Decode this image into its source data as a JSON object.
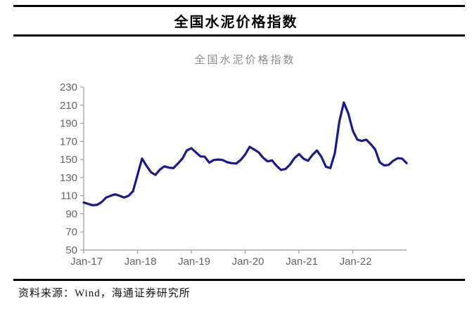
{
  "header": {
    "title": "全国水泥价格指数"
  },
  "source": {
    "label": "资料来源：Wind，海通证券研究所"
  },
  "chart_data": {
    "type": "line",
    "title": "全国水泥价格指数",
    "series_name": "全国水泥价格指数",
    "legend": "none",
    "grid": "off",
    "ylim": [
      50,
      230
    ],
    "y_ticks": [
      230,
      210,
      190,
      170,
      150,
      130,
      110,
      90,
      70,
      50
    ],
    "x_tick_labels": [
      "Jan-17",
      "Jan-18",
      "Jan-19",
      "Jan-20",
      "Jan-21",
      "Jan-22"
    ],
    "line_color": "#1c188e",
    "axis_color": "#9b9b9b",
    "tick_text_color": "#636363",
    "x": [
      "Jan-17",
      "Feb-17",
      "Mar-17",
      "Apr-17",
      "May-17",
      "Jun-17",
      "Jul-17",
      "Aug-17",
      "Sep-17",
      "Oct-17",
      "Nov-17",
      "Dec-17",
      "Jan-18",
      "Feb-18",
      "Mar-18",
      "Apr-18",
      "May-18",
      "Jun-18",
      "Jul-18",
      "Aug-18",
      "Sep-18",
      "Oct-18",
      "Nov-18",
      "Dec-18",
      "Jan-19",
      "Feb-19",
      "Mar-19",
      "Apr-19",
      "May-19",
      "Jun-19",
      "Jul-19",
      "Aug-19",
      "Sep-19",
      "Oct-19",
      "Nov-19",
      "Dec-19",
      "Jan-20",
      "Feb-20",
      "Mar-20",
      "Apr-20",
      "May-20",
      "Jun-20",
      "Jul-20",
      "Aug-20",
      "Sep-20",
      "Oct-20",
      "Nov-20",
      "Dec-20",
      "Jan-21",
      "Feb-21",
      "Mar-21",
      "Apr-21",
      "May-21",
      "Jun-21",
      "Jul-21",
      "Aug-21",
      "Sep-21",
      "Oct-21",
      "Nov-21",
      "Dec-21",
      "Jan-22",
      "Feb-22",
      "Mar-22",
      "Apr-22",
      "May-22",
      "Jun-22",
      "Jul-22",
      "Aug-22",
      "Sep-22",
      "Oct-22",
      "Nov-22",
      "Dec-22",
      "Jan-23"
    ],
    "values": [
      102.5,
      101,
      99.5,
      100,
      103,
      108,
      110,
      111.5,
      110,
      108,
      110,
      115,
      133,
      151,
      143,
      136,
      133,
      139,
      142.5,
      141,
      140.5,
      145.5,
      151,
      160,
      162.5,
      158,
      153.5,
      153,
      146.5,
      149.5,
      150,
      149.5,
      147,
      146,
      145.5,
      149.5,
      155.5,
      164,
      161,
      158,
      152,
      148,
      149,
      143,
      138.5,
      139.5,
      144.5,
      151.5,
      156,
      151,
      148.5,
      155,
      160,
      153,
      142,
      140.5,
      157,
      192,
      213,
      201,
      182,
      172,
      170.5,
      172,
      167,
      161,
      147,
      143.5,
      144,
      148.5,
      151.5,
      151,
      146
    ]
  }
}
